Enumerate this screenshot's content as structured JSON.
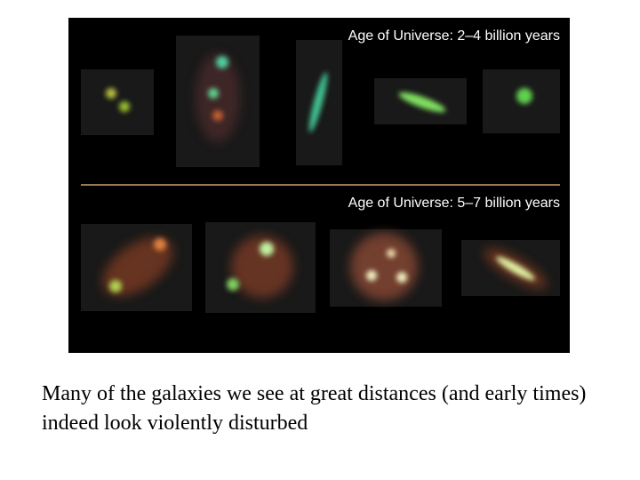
{
  "image": {
    "labels": [
      "Age of Universe: 2–4 billion years",
      "Age of Universe: 5–7 billion years"
    ]
  },
  "caption": "Many of the galaxies we see at great distances (and early times) indeed look violently disturbed"
}
